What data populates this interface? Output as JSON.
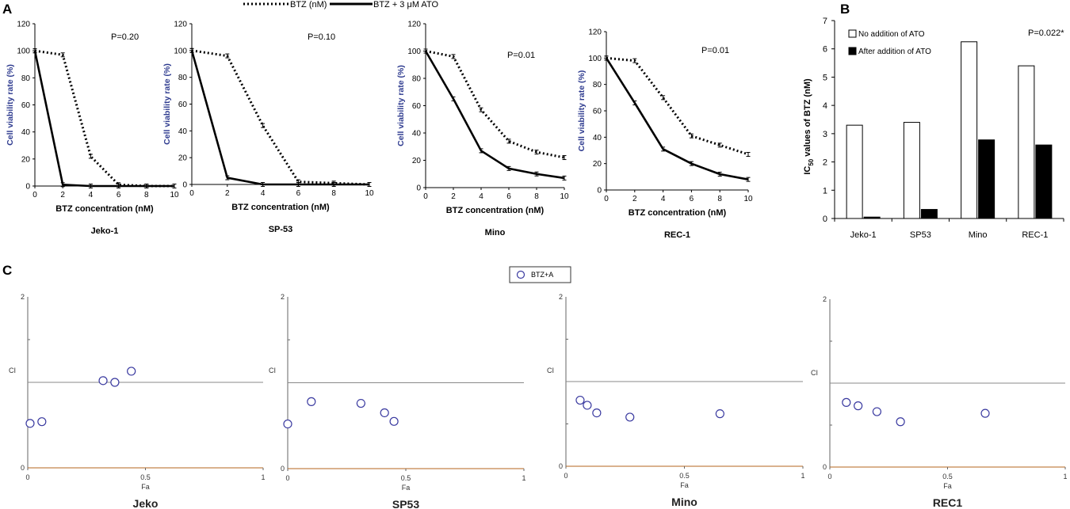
{
  "panel_labels": {
    "a": "A",
    "b": "B",
    "c": "C"
  },
  "chart_data": [
    {
      "type": "line",
      "panel": "A",
      "legend": {
        "placement": "top-center",
        "entries": [
          "BTZ (nM)",
          "BTZ + 3 μM ATO"
        ]
      },
      "xlabel": "BTZ concentration (nM)",
      "ylabel": "Cell viability rate (%)",
      "subplots": [
        {
          "cell_line": "Jeko-1",
          "annotation": "P=0.20",
          "x": [
            0,
            2,
            4,
            6,
            8,
            10
          ],
          "xlim": [
            0,
            10
          ],
          "ylim": [
            0,
            120
          ],
          "xticks": [
            "0",
            "2",
            "4",
            "6",
            "8",
            "10"
          ],
          "yticks": [
            "0",
            "20",
            "40",
            "60",
            "80",
            "100",
            "120"
          ],
          "series": [
            {
              "name": "BTZ (nM)",
              "values": [
                100,
                97,
                22,
                1,
                0,
                0
              ]
            },
            {
              "name": "BTZ + 3 μM ATO",
              "values": [
                100,
                1,
                0,
                0,
                0,
                0
              ]
            }
          ]
        },
        {
          "cell_line": "SP-53",
          "annotation": "P=0.10",
          "x": [
            0,
            2,
            4,
            6,
            8,
            10
          ],
          "xlim": [
            0,
            10
          ],
          "ylim": [
            0,
            120
          ],
          "xticks": [
            "0",
            "2",
            "4",
            "6",
            "8",
            "10"
          ],
          "yticks": [
            "0",
            "20",
            "40",
            "60",
            "80",
            "100",
            "120"
          ],
          "series": [
            {
              "name": "BTZ (nM)",
              "values": [
                100,
                96,
                44,
                2,
                1,
                0
              ]
            },
            {
              "name": "BTZ + 3 μM ATO",
              "values": [
                100,
                5,
                0,
                0,
                0,
                0
              ]
            }
          ]
        },
        {
          "cell_line": "Mino",
          "annotation": "P=0.01",
          "x": [
            0,
            2,
            4,
            6,
            8,
            10
          ],
          "xlim": [
            0,
            10
          ],
          "ylim": [
            0,
            120
          ],
          "xticks": [
            "0",
            "2",
            "4",
            "6",
            "8",
            "10"
          ],
          "yticks": [
            "0",
            "20",
            "40",
            "60",
            "80",
            "100",
            "120"
          ],
          "series": [
            {
              "name": "BTZ (nM)",
              "values": [
                100,
                96,
                57,
                34,
                26,
                22
              ]
            },
            {
              "name": "BTZ + 3 μM ATO",
              "values": [
                100,
                65,
                27,
                14,
                10,
                7
              ]
            }
          ]
        },
        {
          "cell_line": "REC-1",
          "annotation": "P=0.01",
          "x": [
            0,
            2,
            4,
            6,
            8,
            10
          ],
          "xlim": [
            0,
            10
          ],
          "ylim": [
            0,
            120
          ],
          "xticks": [
            "0",
            "2",
            "4",
            "6",
            "8",
            "10"
          ],
          "yticks": [
            "0",
            "20",
            "40",
            "60",
            "80",
            "100",
            "120"
          ],
          "series": [
            {
              "name": "BTZ (nM)",
              "values": [
                100,
                98,
                70,
                41,
                34,
                27
              ]
            },
            {
              "name": "BTZ + 3 μM ATO",
              "values": [
                100,
                66,
                31,
                20,
                12,
                8
              ]
            }
          ]
        }
      ]
    },
    {
      "type": "bar",
      "panel": "B",
      "categories": [
        "Jeko-1",
        "SP53",
        "Mino",
        "REC-1"
      ],
      "series": [
        {
          "name": "No addition of ATO",
          "values": [
            3.3,
            3.4,
            6.25,
            5.4
          ],
          "color": "#ffffff"
        },
        {
          "name": "After addition of ATO",
          "values": [
            0.05,
            0.32,
            2.78,
            2.6
          ],
          "color": "#000000"
        }
      ],
      "ylabel_prefix": "IC",
      "ylabel_sub": "50",
      "ylabel_suffix": " values of BTZ (nM)",
      "ylim": [
        0,
        7
      ],
      "yticks": [
        "0",
        "1",
        "2",
        "3",
        "4",
        "5",
        "6",
        "7"
      ],
      "annotation": "P=0.022*",
      "legend": {
        "placement": "top-left"
      }
    },
    {
      "type": "scatter",
      "panel": "C",
      "legend": {
        "placement": "top-center",
        "entries": [
          "BTZ+A"
        ]
      },
      "xlabel": "Fa",
      "ylabel": "CI",
      "xlim": [
        0,
        1
      ],
      "ylim": [
        0,
        2
      ],
      "xticks": [
        "0",
        "0.5",
        "1"
      ],
      "yticks": [
        "0",
        "2"
      ],
      "reference_line": 1,
      "subplots": [
        {
          "cell_line": "Jeko",
          "points": [
            [
              0.01,
              0.52
            ],
            [
              0.06,
              0.54
            ],
            [
              0.32,
              1.02
            ],
            [
              0.37,
              1.0
            ],
            [
              0.44,
              1.13
            ]
          ]
        },
        {
          "cell_line": "SP53",
          "points": [
            [
              0.0,
              0.52
            ],
            [
              0.1,
              0.78
            ],
            [
              0.31,
              0.76
            ],
            [
              0.41,
              0.65
            ],
            [
              0.45,
              0.55
            ]
          ]
        },
        {
          "cell_line": "Mino",
          "points": [
            [
              0.06,
              0.78
            ],
            [
              0.09,
              0.72
            ],
            [
              0.13,
              0.63
            ],
            [
              0.27,
              0.58
            ],
            [
              0.65,
              0.62
            ]
          ]
        },
        {
          "cell_line": "REC1",
          "points": [
            [
              0.07,
              0.77
            ],
            [
              0.12,
              0.73
            ],
            [
              0.2,
              0.66
            ],
            [
              0.3,
              0.54
            ],
            [
              0.66,
              0.64
            ]
          ]
        }
      ]
    }
  ]
}
